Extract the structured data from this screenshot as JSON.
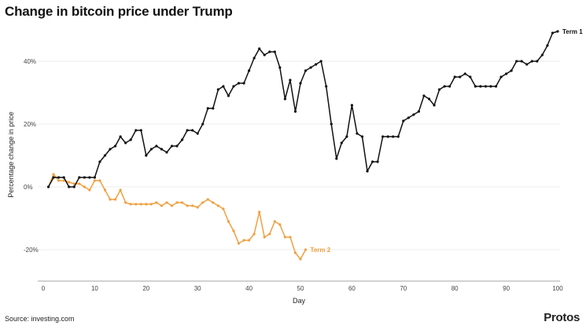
{
  "header": {
    "title": "Change in bitcoin price under Trump"
  },
  "footer": {
    "source": "Source: investing.com",
    "brand": "Protos"
  },
  "chart_data": {
    "type": "line",
    "title": "Change in bitcoin price under Trump",
    "xlabel": "Day",
    "ylabel": "Percentage change in price",
    "xlim": [
      0,
      100
    ],
    "ylim": [
      -30,
      50
    ],
    "xticks": [
      0,
      10,
      20,
      30,
      40,
      50,
      60,
      70,
      80,
      90,
      100
    ],
    "yticks": [
      -20,
      0,
      20,
      40
    ],
    "ytick_labels": [
      "-20%",
      "0%",
      "20%",
      "40%"
    ],
    "grid": "horizontal",
    "legend": "direct labels at series ends",
    "series": [
      {
        "name": "Term 1",
        "color": "#111111",
        "x": [
          1,
          2,
          3,
          4,
          5,
          6,
          7,
          8,
          9,
          10,
          11,
          12,
          13,
          14,
          15,
          16,
          17,
          18,
          19,
          20,
          21,
          22,
          23,
          24,
          25,
          26,
          27,
          28,
          29,
          30,
          31,
          32,
          33,
          34,
          35,
          36,
          37,
          38,
          39,
          40,
          41,
          42,
          43,
          44,
          45,
          46,
          47,
          48,
          49,
          50,
          51,
          52,
          53,
          54,
          55,
          56,
          57,
          58,
          59,
          60,
          61,
          62,
          63,
          64,
          65,
          66,
          67,
          68,
          69,
          70,
          71,
          72,
          73,
          74,
          75,
          76,
          77,
          78,
          79,
          80,
          81,
          82,
          83,
          84,
          85,
          86,
          87,
          88,
          89,
          90,
          91,
          92,
          93,
          94,
          95,
          96,
          97,
          98,
          99,
          100
        ],
        "values": [
          0,
          3,
          3,
          3,
          0,
          0,
          3,
          3,
          3,
          3,
          8,
          10,
          12,
          13,
          16,
          14,
          15,
          18,
          18,
          10,
          12,
          13,
          12,
          11,
          13,
          13,
          15,
          18,
          18,
          17,
          20,
          25,
          25,
          31,
          32,
          29,
          32,
          33,
          33,
          37,
          41,
          44,
          42,
          43,
          43,
          38,
          28,
          34,
          24,
          33,
          37,
          38,
          39,
          40,
          32,
          20,
          9,
          14,
          16,
          26,
          17,
          16,
          5,
          8,
          8,
          16,
          16,
          16,
          16,
          21,
          22,
          23,
          24,
          29,
          28,
          26,
          31,
          32,
          32,
          35,
          35,
          36,
          35,
          32,
          32,
          32,
          32,
          32,
          35,
          36,
          37,
          40,
          40,
          39,
          40,
          40,
          42,
          45,
          49,
          49.5
        ]
      },
      {
        "name": "Term 2",
        "color": "#f0a040",
        "x": [
          1,
          2,
          3,
          4,
          5,
          6,
          7,
          8,
          9,
          10,
          11,
          12,
          13,
          14,
          15,
          16,
          17,
          18,
          19,
          20,
          21,
          22,
          23,
          24,
          25,
          26,
          27,
          28,
          29,
          30,
          31,
          32,
          33,
          34,
          35,
          36,
          37,
          38,
          39,
          40,
          41,
          42,
          43,
          44,
          45,
          46,
          47,
          48,
          49,
          50,
          51
        ],
        "values": [
          0,
          4,
          2,
          2,
          1.5,
          1,
          1,
          0,
          -1,
          2,
          2,
          -1,
          -4,
          -4,
          -1,
          -5,
          -5.5,
          -5.5,
          -5.5,
          -5.5,
          -5.5,
          -5,
          -6,
          -5,
          -6,
          -5,
          -5,
          -6,
          -6,
          -6.5,
          -5,
          -4,
          -5,
          -6,
          -7,
          -11,
          -14,
          -18,
          -17,
          -17,
          -15,
          -8,
          -16,
          -15,
          -11,
          -12,
          -16,
          -16,
          -21,
          -23,
          -20
        ]
      }
    ]
  }
}
